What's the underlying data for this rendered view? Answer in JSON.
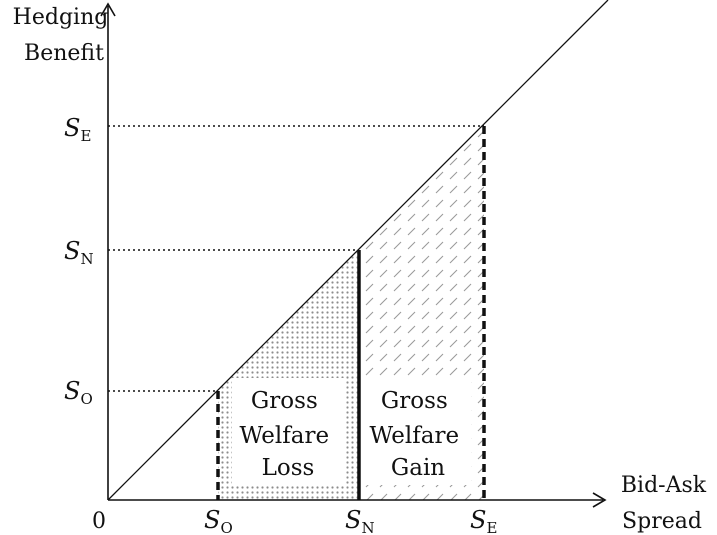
{
  "axes": {
    "y_title": [
      "Hedging",
      "Benefit"
    ],
    "x_title": [
      "Bid-Ask",
      "Spread"
    ],
    "origin_label": "0"
  },
  "ticks": {
    "x": [
      {
        "main": "S",
        "sub": "O"
      },
      {
        "main": "S",
        "sub": "N"
      },
      {
        "main": "S",
        "sub": "E"
      }
    ],
    "y": [
      {
        "main": "S",
        "sub": "E"
      },
      {
        "main": "S",
        "sub": "N"
      },
      {
        "main": "S",
        "sub": "O"
      }
    ]
  },
  "regions": {
    "loss": [
      "Gross",
      "Welfare",
      "Loss"
    ],
    "gain": [
      "Gross",
      "Welfare",
      "Gain"
    ]
  },
  "colors": {
    "ink": "#111111",
    "loss_fill": "#8c8c8c",
    "gain_hatch": "#9a9a9a"
  }
}
